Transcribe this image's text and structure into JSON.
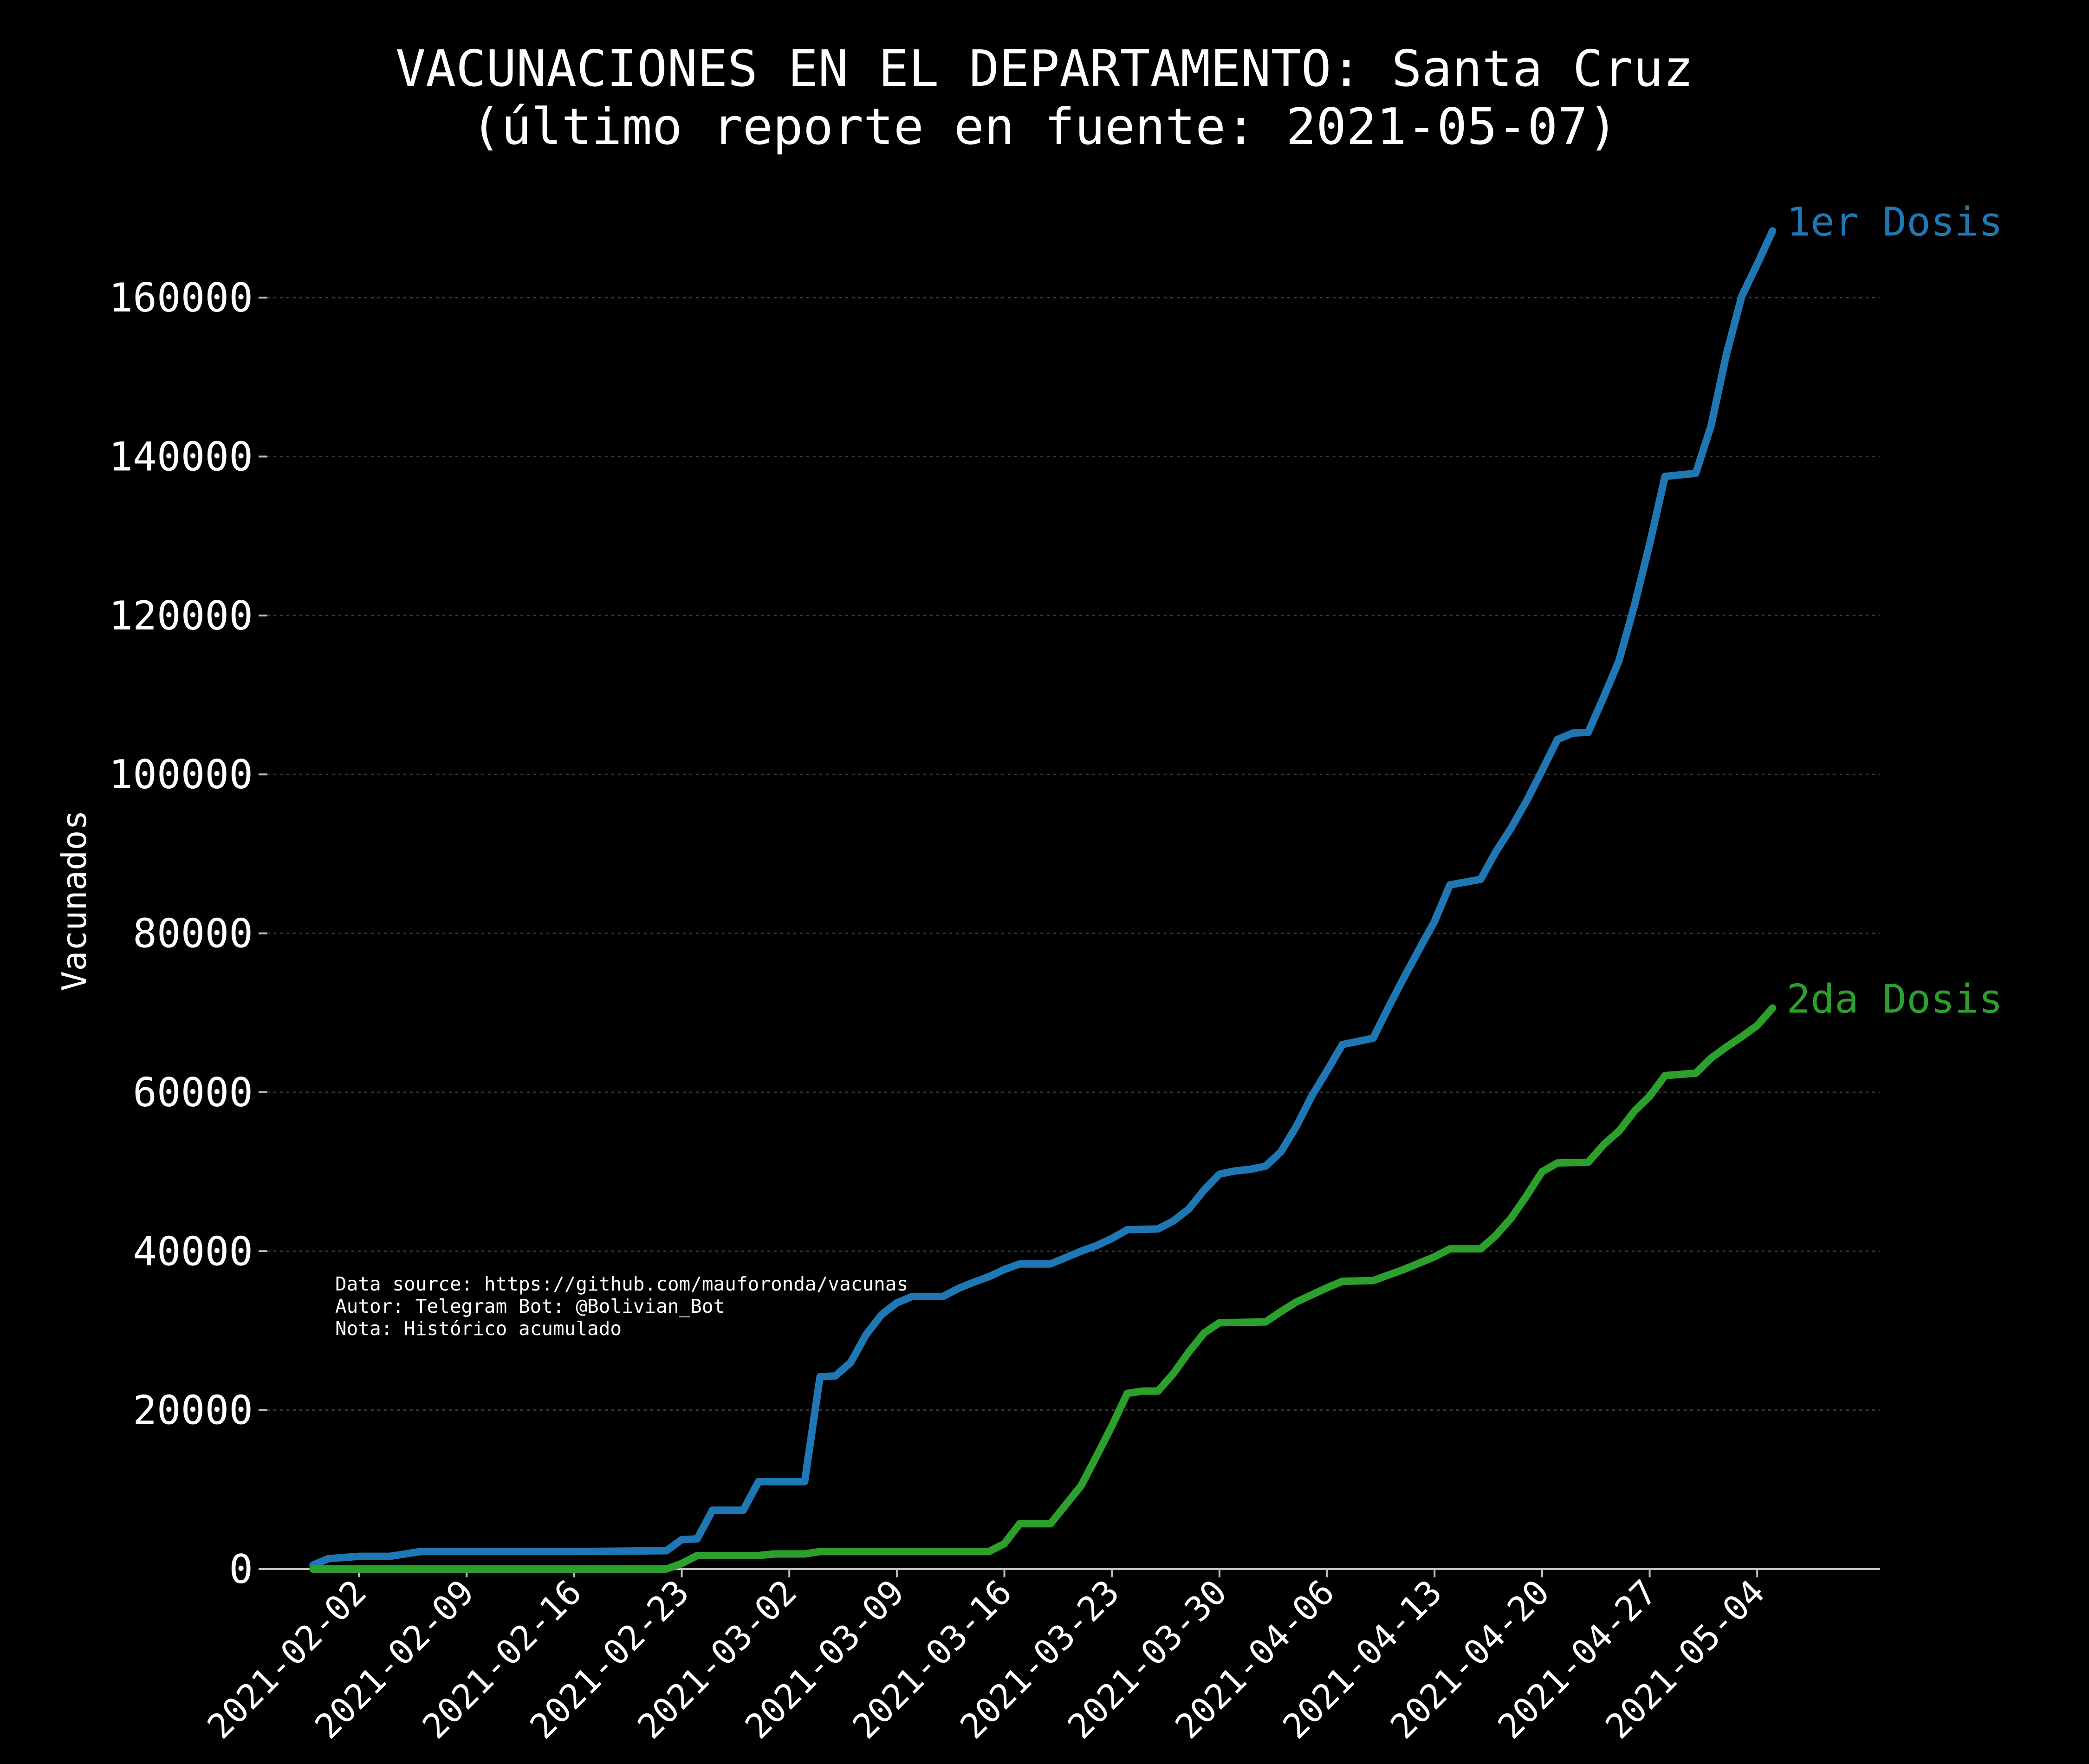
{
  "chart_data": {
    "type": "line",
    "title": "VACUNACIONES EN EL DEPARTAMENTO: Santa Cruz",
    "subtitle": "(último reporte en fuente: 2021-05-07)",
    "ylabel": "Vacunados",
    "xlabel": "",
    "ylim": [
      0,
      170000
    ],
    "xlim": [
      "2021-01-27",
      "2021-05-12"
    ],
    "y_ticks": [
      0,
      20000,
      40000,
      60000,
      80000,
      100000,
      120000,
      140000,
      160000
    ],
    "x_ticks": [
      "2021-02-02",
      "2021-02-09",
      "2021-02-16",
      "2021-02-23",
      "2021-03-02",
      "2021-03-09",
      "2021-03-16",
      "2021-03-23",
      "2021-03-30",
      "2021-04-06",
      "2021-04-13",
      "2021-04-20",
      "2021-04-27",
      "2021-05-04"
    ],
    "grid": "horizontal dotted",
    "notes": [
      "Data source: https://github.com/mauforonda/vacunas",
      "Autor: Telegram Bot: @Bolivian_Bot",
      "Nota: Histórico acumulado"
    ],
    "series": [
      {
        "name": "1er Dosis",
        "color": "#1f77b4",
        "points": [
          [
            "2021-01-30",
            500
          ],
          [
            "2021-01-31",
            1300
          ],
          [
            "2021-02-02",
            1600
          ],
          [
            "2021-02-04",
            1600
          ],
          [
            "2021-02-06",
            2200
          ],
          [
            "2021-02-09",
            2200
          ],
          [
            "2021-02-16",
            2200
          ],
          [
            "2021-02-22",
            2300
          ],
          [
            "2021-02-23",
            3700
          ],
          [
            "2021-02-24",
            3800
          ],
          [
            "2021-02-25",
            7400
          ],
          [
            "2021-02-27",
            7400
          ],
          [
            "2021-02-28",
            11000
          ],
          [
            "2021-03-03",
            11000
          ],
          [
            "2021-03-04",
            24200
          ],
          [
            "2021-03-05",
            24300
          ],
          [
            "2021-03-06",
            26000
          ],
          [
            "2021-03-07",
            29500
          ],
          [
            "2021-03-08",
            32000
          ],
          [
            "2021-03-09",
            33500
          ],
          [
            "2021-03-10",
            34300
          ],
          [
            "2021-03-12",
            34300
          ],
          [
            "2021-03-13",
            35300
          ],
          [
            "2021-03-14",
            36100
          ],
          [
            "2021-03-15",
            36800
          ],
          [
            "2021-03-16",
            37700
          ],
          [
            "2021-03-17",
            38400
          ],
          [
            "2021-03-19",
            38400
          ],
          [
            "2021-03-20",
            39200
          ],
          [
            "2021-03-21",
            40000
          ],
          [
            "2021-03-22",
            40700
          ],
          [
            "2021-03-23",
            41600
          ],
          [
            "2021-03-24",
            42700
          ],
          [
            "2021-03-26",
            42800
          ],
          [
            "2021-03-27",
            43800
          ],
          [
            "2021-03-28",
            45300
          ],
          [
            "2021-03-29",
            47700
          ],
          [
            "2021-03-30",
            49700
          ],
          [
            "2021-03-31",
            50100
          ],
          [
            "2021-04-01",
            50300
          ],
          [
            "2021-04-02",
            50700
          ],
          [
            "2021-04-03",
            52500
          ],
          [
            "2021-04-04",
            55700
          ],
          [
            "2021-04-05",
            59500
          ],
          [
            "2021-04-06",
            62700
          ],
          [
            "2021-04-07",
            66000
          ],
          [
            "2021-04-09",
            66800
          ],
          [
            "2021-04-10",
            70700
          ],
          [
            "2021-04-11",
            74400
          ],
          [
            "2021-04-12",
            78000
          ],
          [
            "2021-04-13",
            81500
          ],
          [
            "2021-04-14",
            86100
          ],
          [
            "2021-04-16",
            86800
          ],
          [
            "2021-04-17",
            90300
          ],
          [
            "2021-04-18",
            93300
          ],
          [
            "2021-04-19",
            96700
          ],
          [
            "2021-04-20",
            100500
          ],
          [
            "2021-04-21",
            104400
          ],
          [
            "2021-04-22",
            105200
          ],
          [
            "2021-04-23",
            105300
          ],
          [
            "2021-04-24",
            109700
          ],
          [
            "2021-04-25",
            114300
          ],
          [
            "2021-04-26",
            121200
          ],
          [
            "2021-04-27",
            129000
          ],
          [
            "2021-04-28",
            137500
          ],
          [
            "2021-04-30",
            137900
          ],
          [
            "2021-05-01",
            143900
          ],
          [
            "2021-05-02",
            152900
          ],
          [
            "2021-05-03",
            160200
          ],
          [
            "2021-05-04",
            164200
          ],
          [
            "2021-05-05",
            168400
          ]
        ]
      },
      {
        "name": "2da Dosis",
        "color": "#2ca02c",
        "points": [
          [
            "2021-01-30",
            0
          ],
          [
            "2021-02-22",
            0
          ],
          [
            "2021-02-23",
            700
          ],
          [
            "2021-02-24",
            1700
          ],
          [
            "2021-02-28",
            1700
          ],
          [
            "2021-02-29",
            1900
          ],
          [
            "2021-03-03",
            1900
          ],
          [
            "2021-03-04",
            2200
          ],
          [
            "2021-03-15",
            2200
          ],
          [
            "2021-03-16",
            3200
          ],
          [
            "2021-03-17",
            5700
          ],
          [
            "2021-03-19",
            5700
          ],
          [
            "2021-03-20",
            8100
          ],
          [
            "2021-03-21",
            10500
          ],
          [
            "2021-03-22",
            14200
          ],
          [
            "2021-03-23",
            18000
          ],
          [
            "2021-03-24",
            22100
          ],
          [
            "2021-03-25",
            22400
          ],
          [
            "2021-03-26",
            22400
          ],
          [
            "2021-03-27",
            24600
          ],
          [
            "2021-03-28",
            27300
          ],
          [
            "2021-03-29",
            29700
          ],
          [
            "2021-03-30",
            31000
          ],
          [
            "2021-04-02",
            31100
          ],
          [
            "2021-04-03",
            32400
          ],
          [
            "2021-04-04",
            33600
          ],
          [
            "2021-04-05",
            34500
          ],
          [
            "2021-04-06",
            35400
          ],
          [
            "2021-04-07",
            36200
          ],
          [
            "2021-04-09",
            36300
          ],
          [
            "2021-04-10",
            37000
          ],
          [
            "2021-04-11",
            37700
          ],
          [
            "2021-04-12",
            38500
          ],
          [
            "2021-04-13",
            39300
          ],
          [
            "2021-04-14",
            40300
          ],
          [
            "2021-04-16",
            40300
          ],
          [
            "2021-04-17",
            42000
          ],
          [
            "2021-04-18",
            44200
          ],
          [
            "2021-04-19",
            47000
          ],
          [
            "2021-04-20",
            50000
          ],
          [
            "2021-04-21",
            51100
          ],
          [
            "2021-04-23",
            51200
          ],
          [
            "2021-04-24",
            53400
          ],
          [
            "2021-04-25",
            55100
          ],
          [
            "2021-04-26",
            57600
          ],
          [
            "2021-04-27",
            59500
          ],
          [
            "2021-04-28",
            62100
          ],
          [
            "2021-04-30",
            62400
          ],
          [
            "2021-05-01",
            64300
          ],
          [
            "2021-05-02",
            65700
          ],
          [
            "2021-05-03",
            67000
          ],
          [
            "2021-05-04",
            68400
          ],
          [
            "2021-05-05",
            70600
          ]
        ]
      }
    ]
  }
}
